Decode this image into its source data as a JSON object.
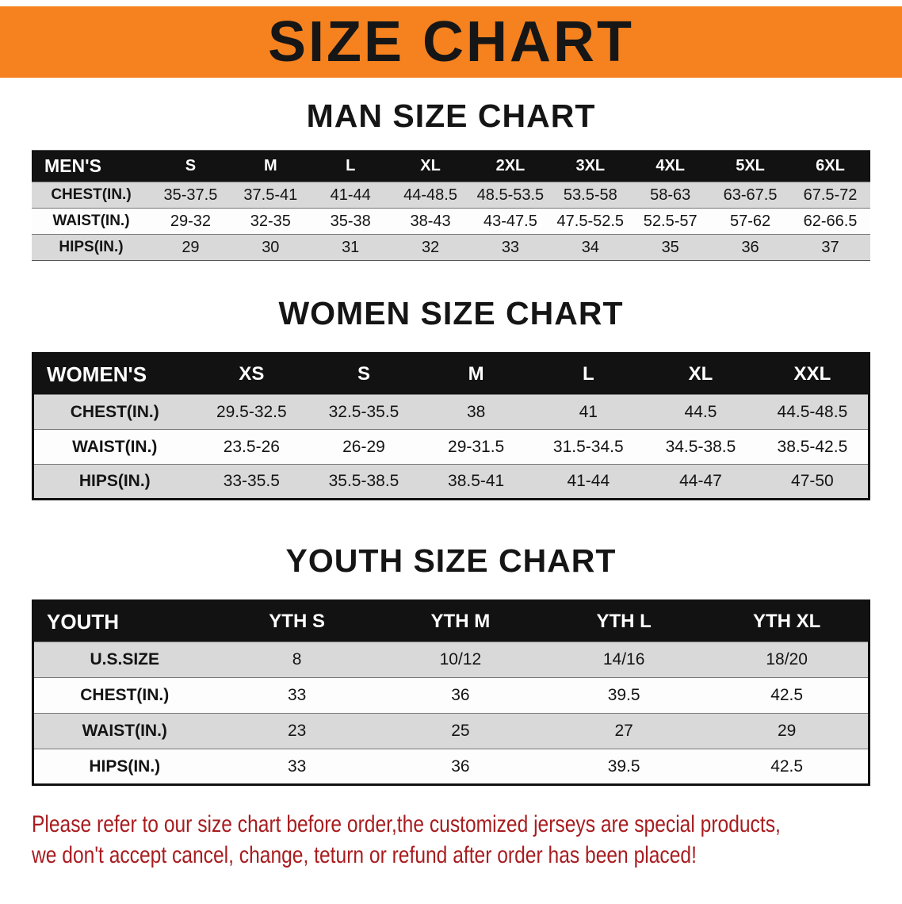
{
  "banner": {
    "title": "SIZE CHART"
  },
  "sections": {
    "men": {
      "heading": "MAN SIZE CHART",
      "table": {
        "header": [
          "MEN'S",
          "S",
          "M",
          "L",
          "XL",
          "2XL",
          "3XL",
          "4XL",
          "5XL",
          "6XL"
        ],
        "rows": [
          [
            "CHEST(IN.)",
            "35-37.5",
            "37.5-41",
            "41-44",
            "44-48.5",
            "48.5-53.5",
            "53.5-58",
            "58-63",
            "63-67.5",
            "67.5-72"
          ],
          [
            "WAIST(IN.)",
            "29-32",
            "32-35",
            "35-38",
            "38-43",
            "43-47.5",
            "47.5-52.5",
            "52.5-57",
            "57-62",
            "62-66.5"
          ],
          [
            "HIPS(IN.)",
            "29",
            "30",
            "31",
            "32",
            "33",
            "34",
            "35",
            "36",
            "37"
          ]
        ]
      }
    },
    "women": {
      "heading": "WOMEN SIZE CHART",
      "table": {
        "header": [
          "WOMEN'S",
          "XS",
          "S",
          "M",
          "L",
          "XL",
          "XXL"
        ],
        "rows": [
          [
            "CHEST(IN.)",
            "29.5-32.5",
            "32.5-35.5",
            "38",
            "41",
            "44.5",
            "44.5-48.5"
          ],
          [
            "WAIST(IN.)",
            "23.5-26",
            "26-29",
            "29-31.5",
            "31.5-34.5",
            "34.5-38.5",
            "38.5-42.5"
          ],
          [
            "HIPS(IN.)",
            "33-35.5",
            "35.5-38.5",
            "38.5-41",
            "41-44",
            "44-47",
            "47-50"
          ]
        ]
      }
    },
    "youth": {
      "heading": "YOUTH SIZE CHART",
      "table": {
        "header": [
          "YOUTH",
          "YTH S",
          "YTH M",
          "YTH L",
          "YTH XL"
        ],
        "rows": [
          [
            "U.S.SIZE",
            "8",
            "10/12",
            "14/16",
            "18/20"
          ],
          [
            "CHEST(IN.)",
            "33",
            "36",
            "39.5",
            "42.5"
          ],
          [
            "WAIST(IN.)",
            "23",
            "25",
            "27",
            "29"
          ],
          [
            "HIPS(IN.)",
            "33",
            "36",
            "39.5",
            "42.5"
          ]
        ]
      }
    }
  },
  "disclaimer": {
    "line1": "Please refer to our size chart before order,the customized jerseys are special products,",
    "line2": "we don't accept cancel, change, teturn or refund after order has been placed!"
  },
  "colors": {
    "banner_bg": "#f5821f",
    "table_header_bg": "#121212",
    "row_alt_bg": "#d9d9d9",
    "disclaimer_text": "#a81c1f"
  }
}
